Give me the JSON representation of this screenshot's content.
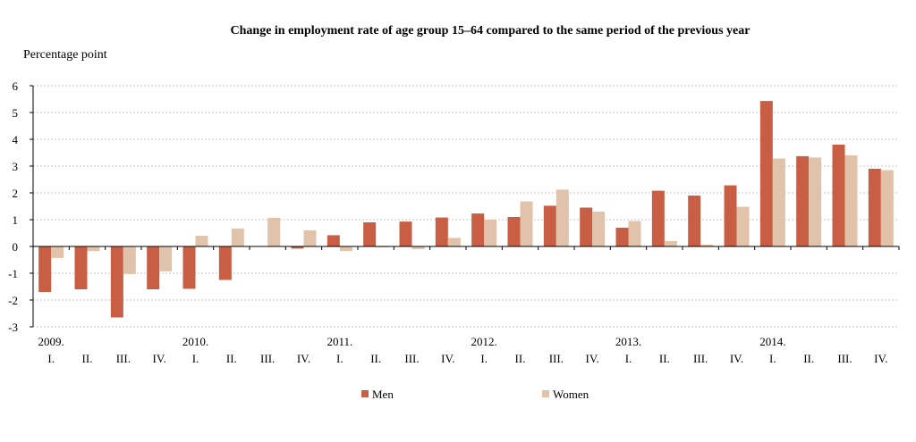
{
  "chart_data": {
    "type": "bar",
    "title": "Change in employment rate of age group 15–64 compared to the same period of the previous year",
    "ylabel": "Percentage point",
    "xlabel": "",
    "ylim": [
      -3,
      6
    ],
    "yticks": [
      "-3",
      "-2",
      "-1",
      "0",
      "1",
      "2",
      "3",
      "4",
      "5",
      "6"
    ],
    "grid": "horizontal dashed",
    "legend_position": "bottom-center",
    "years": [
      "2009.",
      "2010.",
      "2011.",
      "2012.",
      "2013.",
      "2014."
    ],
    "quarters": [
      "I.",
      "II.",
      "III.",
      "IV.",
      "I.",
      "II.",
      "III.",
      "IV.",
      "I.",
      "II.",
      "III.",
      "IV.",
      "I.",
      "II.",
      "III.",
      "IV.",
      "I.",
      "II.",
      "III.",
      "IV.",
      "I.",
      "II.",
      "III.",
      "IV."
    ],
    "series": [
      {
        "name": "Men",
        "color": "#C85F45",
        "values": [
          -1.7,
          -1.6,
          -2.65,
          -1.6,
          -1.58,
          -1.25,
          0.0,
          -0.08,
          0.42,
          0.9,
          0.93,
          1.08,
          1.23,
          1.1,
          1.52,
          1.45,
          0.7,
          2.08,
          1.9,
          2.28,
          5.43,
          3.37,
          3.8,
          2.9
        ]
      },
      {
        "name": "Women",
        "color": "#E0C3AA",
        "values": [
          -0.43,
          -0.17,
          -1.03,
          -0.93,
          0.4,
          0.67,
          1.07,
          0.6,
          -0.17,
          -0.03,
          -0.1,
          0.32,
          1.0,
          1.68,
          2.12,
          1.3,
          0.95,
          0.2,
          0.07,
          1.48,
          3.28,
          3.32,
          3.4,
          2.85
        ]
      }
    ]
  }
}
